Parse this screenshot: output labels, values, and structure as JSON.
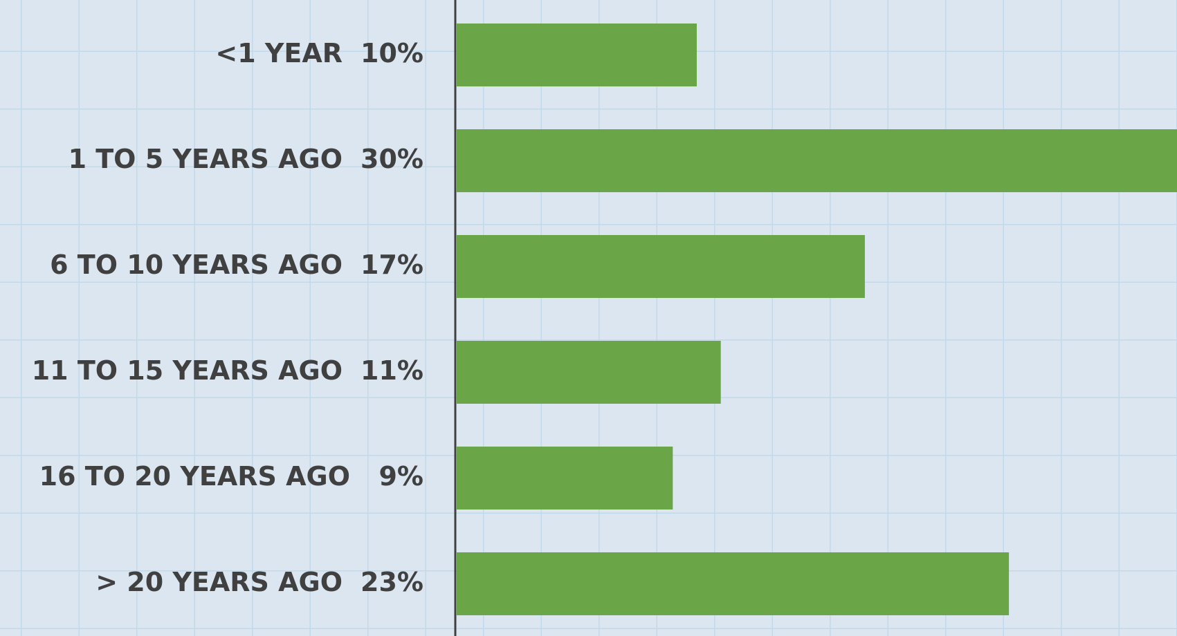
{
  "chart_data": {
    "type": "bar",
    "orientation": "horizontal",
    "categories": [
      "<1 YEAR",
      "1 TO 5 YEARS AGO",
      "6 TO 10 YEARS AGO",
      "11 TO 15 YEARS AGO",
      "16 TO 20 YEARS AGO",
      "> 20 YEARS AGO"
    ],
    "values": [
      10,
      30,
      17,
      11,
      9,
      23
    ],
    "value_labels": [
      "10%",
      "30%",
      "17%",
      "11%",
      "9%",
      "23%"
    ],
    "color": "#6aa548"
  }
}
